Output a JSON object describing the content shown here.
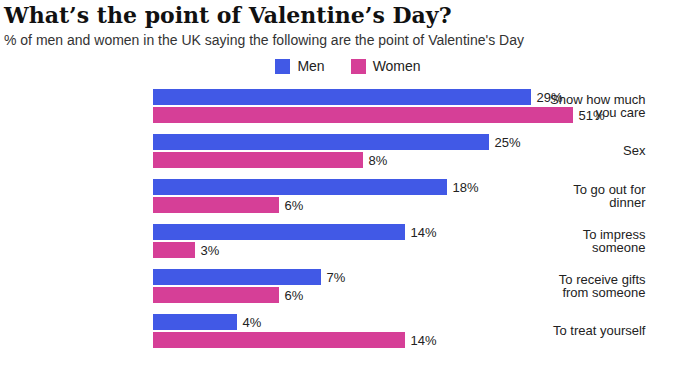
{
  "chart_data": {
    "type": "bar",
    "orientation": "horizontal",
    "title": "What’s the point of Valentine’s Day?",
    "subtitle": "% of men and women in the UK saying the following are the point of Valentine's Day",
    "categories": [
      "Show how much you care",
      "Sex",
      "To go out for dinner",
      "To impress someone",
      "To receive gifts from someone",
      "To treat yourself"
    ],
    "series": [
      {
        "name": "Men",
        "color": "#4159e6",
        "values": [
          29,
          25,
          18,
          14,
          7,
          4
        ],
        "value_labels": [
          "29%",
          "25%",
          "18%",
          "14%",
          "7%",
          "4%"
        ]
      },
      {
        "name": "Women",
        "color": "#d63f97",
        "values": [
          51,
          8,
          6,
          3,
          6,
          14
        ],
        "value_labels": [
          "51%",
          "8%",
          "6%",
          "3%",
          "6%",
          "14%"
        ]
      }
    ],
    "legend": "top",
    "data_labels": true,
    "tick_labels": "y",
    "grid": false
  }
}
